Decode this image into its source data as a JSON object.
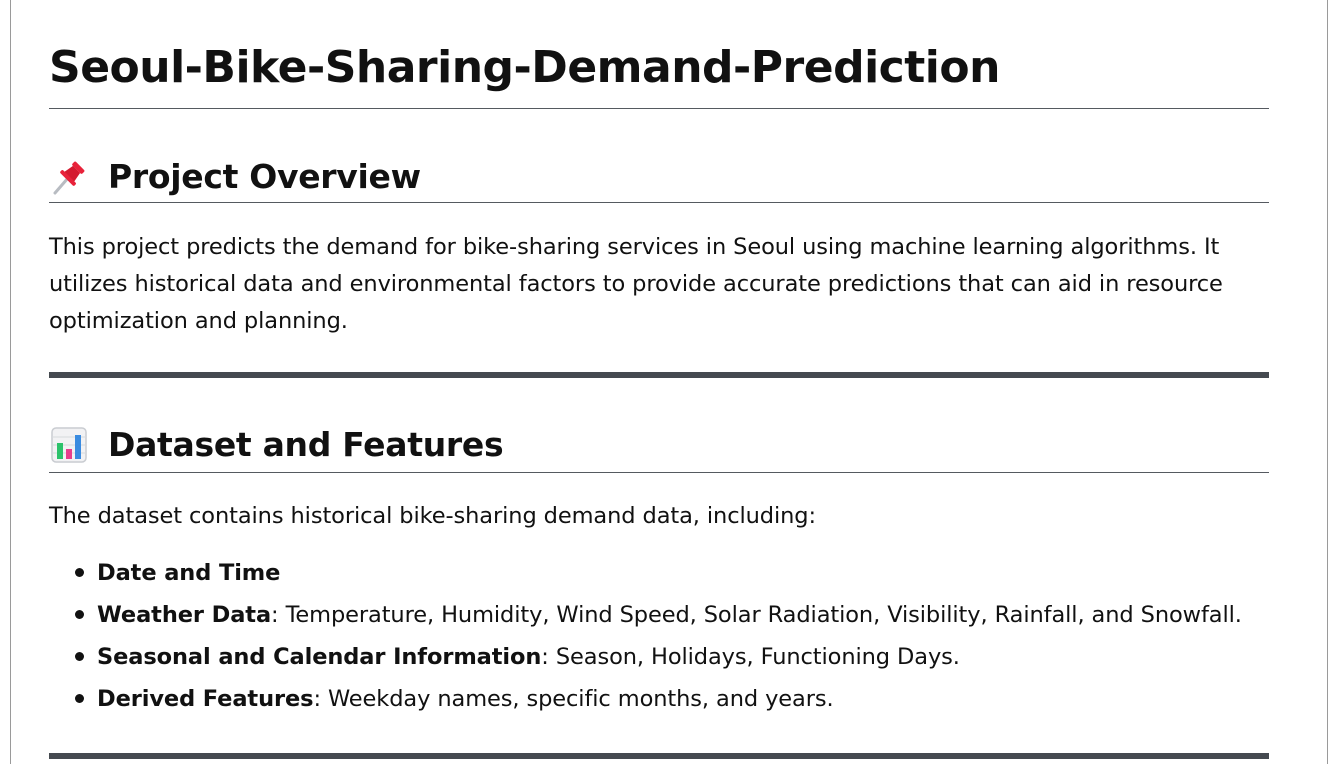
{
  "title": "Seoul-Bike-Sharing-Demand-Prediction",
  "sections": {
    "overview": {
      "icon": "pushpin-icon",
      "heading": "Project Overview",
      "body": "This project predicts the demand for bike-sharing services in Seoul using machine learning algorithms. It utilizes historical data and environmental factors to provide accurate predictions that can aid in resource optimization and planning."
    },
    "dataset": {
      "icon": "bar-chart-icon",
      "heading": "Dataset and Features",
      "intro": "The dataset contains historical bike-sharing demand data, including:",
      "items": [
        {
          "label": "Date and Time",
          "text": ""
        },
        {
          "label": "Weather Data",
          "text": ": Temperature, Humidity, Wind Speed, Solar Radiation, Visibility, Rainfall, and Snowfall."
        },
        {
          "label": "Seasonal and Calendar Information",
          "text": ": Season, Holidays, Functioning Days."
        },
        {
          "label": "Derived Features",
          "text": ": Weekday names, specific months, and years."
        }
      ]
    }
  },
  "colors": {
    "text": "#111111",
    "rule": "#454a50",
    "pin_red": "#e8223a",
    "chart_green": "#2dc26b",
    "chart_pink": "#e83e8c",
    "chart_blue": "#3a8be0"
  }
}
